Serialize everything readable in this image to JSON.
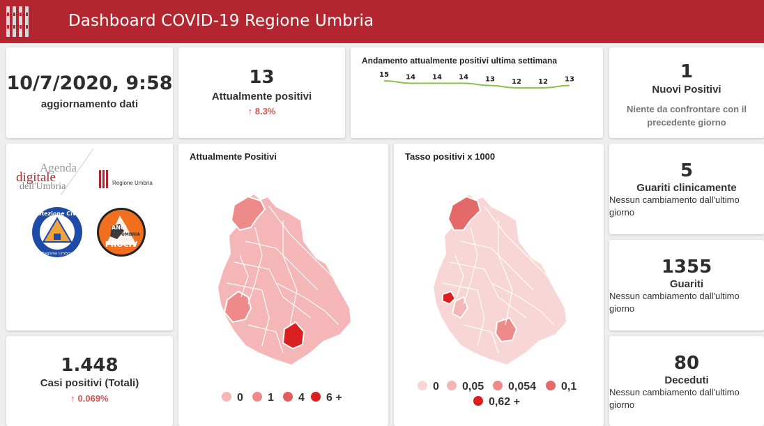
{
  "header": {
    "title": "Dashboard COVID-19 Regione Umbria"
  },
  "update": {
    "datetime": "10/7/2020, 9:58",
    "label": "aggiornamento dati"
  },
  "positivi": {
    "value": "13",
    "label": "Attualmente positivi",
    "change": "8.3%"
  },
  "trend": {
    "title": "Andamento attualmente positivi ultima settimana",
    "values": [
      15,
      14,
      14,
      14,
      13,
      12,
      12,
      13
    ]
  },
  "nuovi": {
    "value": "1",
    "label": "Nuovi Positivi",
    "note": "Niente da confrontare con il precedente giorno"
  },
  "logos": {
    "agenda_1": "Agenda",
    "agenda_2": "digitale",
    "agenda_3": "dell'Umbria",
    "regione": "Regione Umbria",
    "protezione_top": "Protezione Civile",
    "protezione_bottom": "Regione Umbria",
    "anci_1": "ANCI",
    "anci_2": "UMBRIA",
    "anci_3": "PROCIV"
  },
  "totali": {
    "value": "1.448",
    "label": "Casi positivi (Totali)",
    "change": "0.069%"
  },
  "map1": {
    "title": "Attualmente Positivi",
    "legend": [
      "0",
      "1",
      "4",
      "6 +"
    ]
  },
  "map2": {
    "title": "Tasso positivi x 1000",
    "legend": [
      "0",
      "0,05",
      "0,054",
      "0,1",
      "0,62 +"
    ]
  },
  "guariti_clin": {
    "value": "5",
    "label": "Guariti clinicamente",
    "note": "Nessun cambiamento dall'ultimo giorno"
  },
  "guariti": {
    "value": "1355",
    "label": "Guariti",
    "note": "Nessun cambiamento dall'ultimo giorno"
  },
  "deceduti": {
    "value": "80",
    "label": "Deceduti",
    "note": "Nessun cambiamento dall'ultimo giorno"
  },
  "colors": {
    "header": "#b3262f",
    "accent": "#d9534f",
    "trend_line": "#8bc34a",
    "scale": [
      "#f4b6b6",
      "#ee8a8a",
      "#e25d5d",
      "#d91f1f"
    ],
    "scale2": [
      "#f9d6d6",
      "#f4b6b6",
      "#ee8a8a",
      "#e46a6a",
      "#d91f1f"
    ]
  }
}
